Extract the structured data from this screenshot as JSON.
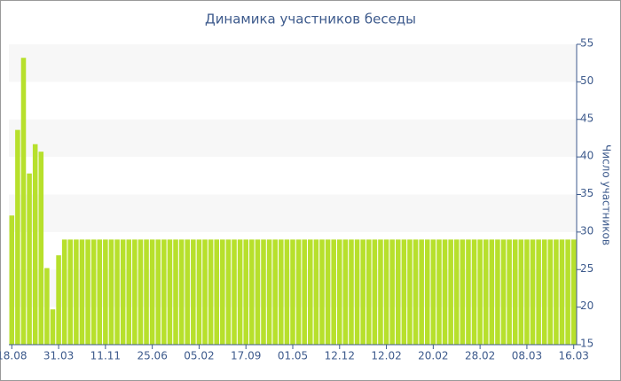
{
  "chart_data": {
    "type": "bar",
    "title": "Динамика участников беседы",
    "y_label": "Число участников",
    "categories": [
      "18.08",
      null,
      null,
      null,
      null,
      null,
      null,
      null,
      "31.03",
      null,
      null,
      null,
      null,
      null,
      null,
      null,
      "11.11",
      null,
      null,
      null,
      null,
      null,
      null,
      null,
      "25.06",
      null,
      null,
      null,
      null,
      null,
      null,
      null,
      "05.02",
      null,
      null,
      null,
      null,
      null,
      null,
      null,
      "17.09",
      null,
      null,
      null,
      null,
      null,
      null,
      null,
      "01.05",
      null,
      null,
      null,
      null,
      null,
      null,
      null,
      "12.12",
      null,
      null,
      null,
      null,
      null,
      null,
      null,
      "12.02",
      null,
      null,
      null,
      null,
      null,
      null,
      null,
      "20.02",
      null,
      null,
      null,
      null,
      null,
      null,
      null,
      "28.02",
      null,
      null,
      null,
      null,
      null,
      null,
      null,
      "08.03",
      null,
      null,
      null,
      null,
      null,
      null,
      null,
      "16.03"
    ],
    "values": [
      32.2,
      43.6,
      53.2,
      37.8,
      41.7,
      40.7,
      25.2,
      19.7,
      26.9,
      29,
      29,
      29,
      29,
      29,
      29,
      29,
      29,
      29,
      29,
      29,
      29,
      29,
      29,
      29,
      29,
      29,
      29,
      29,
      29,
      29,
      29,
      29,
      29,
      29,
      29,
      29,
      29,
      29,
      29,
      29,
      29,
      29,
      29,
      29,
      29,
      29,
      29,
      29,
      29,
      29,
      29,
      29,
      29,
      29,
      29,
      29,
      29,
      29,
      29,
      29,
      29,
      29,
      29,
      29,
      29,
      29,
      29,
      29,
      29,
      29,
      29,
      29,
      29,
      29,
      29,
      29,
      29,
      29,
      29,
      29,
      29,
      29,
      29,
      29,
      29,
      29,
      29,
      29,
      29,
      29,
      29,
      29,
      29,
      29,
      29,
      29,
      29
    ],
    "color": "#b7e02c",
    "ylim": [
      15,
      55
    ],
    "yticks": [
      15,
      20,
      25,
      30,
      35,
      40,
      45,
      50,
      55
    ],
    "y_axis_side": "right",
    "bands": true
  }
}
